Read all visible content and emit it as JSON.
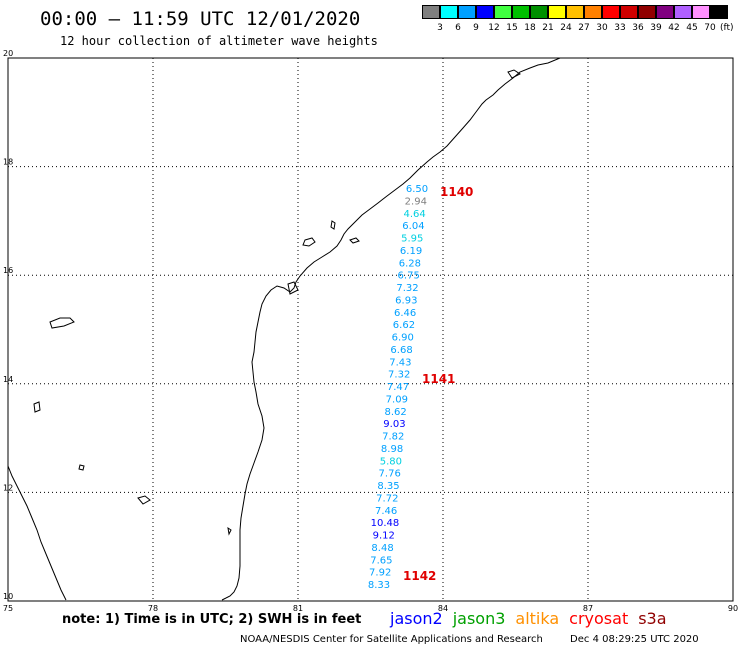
{
  "header": {
    "title": "00:00 – 11:59 UTC 12/01/2020",
    "subtitle": "12 hour collection of altimeter wave heights"
  },
  "legend": {
    "unit": "(ft)",
    "labels": [
      "3",
      "6",
      "9",
      "12",
      "15",
      "18",
      "21",
      "24",
      "27",
      "30",
      "33",
      "36",
      "39",
      "42",
      "45",
      "70"
    ],
    "colors": [
      "#7f7f7f",
      "#00ffff",
      "#00a0ff",
      "#0000ff",
      "#40ff40",
      "#00c000",
      "#009000",
      "#ffff00",
      "#ffc000",
      "#ff8000",
      "#ff0000",
      "#d00000",
      "#900000",
      "#800080",
      "#b060ff",
      "#ff90ff",
      "#000000"
    ]
  },
  "map": {
    "lon_ticks": [
      "75",
      "78",
      "81",
      "84",
      "87",
      "90"
    ],
    "lat_ticks": [
      "10",
      "12",
      "14",
      "16",
      "18",
      "20"
    ],
    "lon_range": [
      75,
      90
    ],
    "lat_range": [
      10,
      20
    ],
    "observations": [
      {
        "text": "6.50",
        "color": "#00a0ff"
      },
      {
        "text": "2.94",
        "color": "#7f7f7f"
      },
      {
        "text": "4.64",
        "color": "#00d0e0"
      },
      {
        "text": "6.04",
        "color": "#00a0ff"
      },
      {
        "text": "5.95",
        "color": "#00d0e0"
      },
      {
        "text": "6.19",
        "color": "#00a0ff"
      },
      {
        "text": "6.28",
        "color": "#00a0ff"
      },
      {
        "text": "6.75",
        "color": "#00a0ff"
      },
      {
        "text": "7.32",
        "color": "#00a0ff"
      },
      {
        "text": "6.93",
        "color": "#00a0ff"
      },
      {
        "text": "6.46",
        "color": "#00a0ff"
      },
      {
        "text": "6.62",
        "color": "#00a0ff"
      },
      {
        "text": "6.90",
        "color": "#00a0ff"
      },
      {
        "text": "6.68",
        "color": "#00a0ff"
      },
      {
        "text": "7.43",
        "color": "#00a0ff"
      },
      {
        "text": "7.32",
        "color": "#00a0ff"
      },
      {
        "text": "7.47",
        "color": "#00a0ff"
      },
      {
        "text": "7.09",
        "color": "#00a0ff"
      },
      {
        "text": "8.62",
        "color": "#00a0ff"
      },
      {
        "text": "9.03",
        "color": "#0000ff"
      },
      {
        "text": "7.82",
        "color": "#00a0ff"
      },
      {
        "text": "8.98",
        "color": "#00a0ff"
      },
      {
        "text": "5.80",
        "color": "#00d0e0"
      },
      {
        "text": "7.76",
        "color": "#00a0ff"
      },
      {
        "text": "8.35",
        "color": "#00a0ff"
      },
      {
        "text": "7.72",
        "color": "#00a0ff"
      },
      {
        "text": "7.46",
        "color": "#00a0ff"
      },
      {
        "text": "10.48",
        "color": "#0000ff"
      },
      {
        "text": "9.12",
        "color": "#0000ff"
      },
      {
        "text": "8.48",
        "color": "#00a0ff"
      },
      {
        "text": "7.65",
        "color": "#00a0ff"
      },
      {
        "text": "7.92",
        "color": "#00a0ff"
      },
      {
        "text": "8.33",
        "color": "#00a0ff"
      }
    ],
    "passes": [
      {
        "text": "1140",
        "color": "#e00000"
      },
      {
        "text": "1141",
        "color": "#e00000"
      },
      {
        "text": "1142",
        "color": "#e00000"
      }
    ]
  },
  "footer": {
    "note": "note: 1) Time is in UTC; 2) SWH is in feet",
    "satellites": [
      {
        "name": "jason2",
        "color": "#0000ff"
      },
      {
        "name": "jason3",
        "color": "#00a000"
      },
      {
        "name": "altika",
        "color": "#ff9000"
      },
      {
        "name": "cryosat",
        "color": "#ff0000"
      },
      {
        "name": "s3a",
        "color": "#900000"
      }
    ],
    "credit_left": "NOAA/NESDIS Center for Satellite Applications and Research",
    "credit_right": "Dec  4 08:29:25 UTC 2020"
  }
}
